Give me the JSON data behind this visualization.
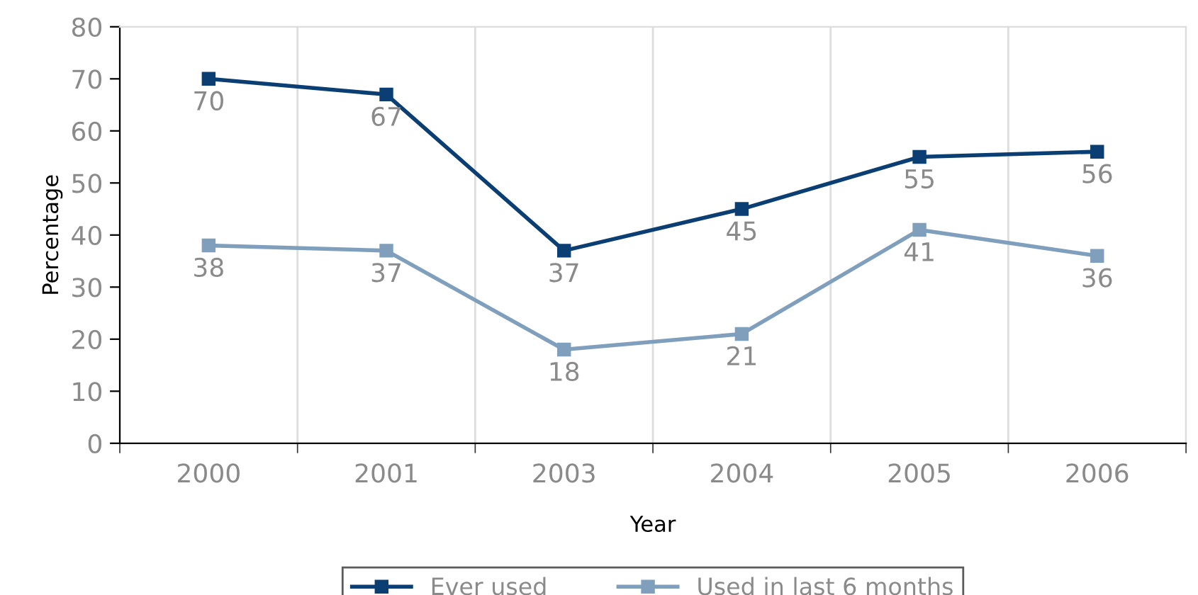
{
  "chart_data": {
    "type": "line",
    "xlabel": "Year",
    "ylabel": "Percentage",
    "categories": [
      "2000",
      "2001",
      "2003",
      "2004",
      "2005",
      "2006"
    ],
    "series": [
      {
        "name": "Ever used",
        "color": "#0b3f73",
        "values": [
          70,
          67,
          37,
          45,
          55,
          56
        ]
      },
      {
        "name": "Used in last 6 months",
        "color": "#7f9fbd",
        "values": [
          38,
          37,
          18,
          21,
          41,
          36
        ]
      }
    ],
    "ylim": [
      0,
      80
    ],
    "yticks": [
      0,
      10,
      20,
      30,
      40,
      50,
      60,
      70,
      80
    ],
    "grid": "x",
    "legend": "bottom",
    "marker": "square",
    "line_style": "solid",
    "data_labels": true
  }
}
